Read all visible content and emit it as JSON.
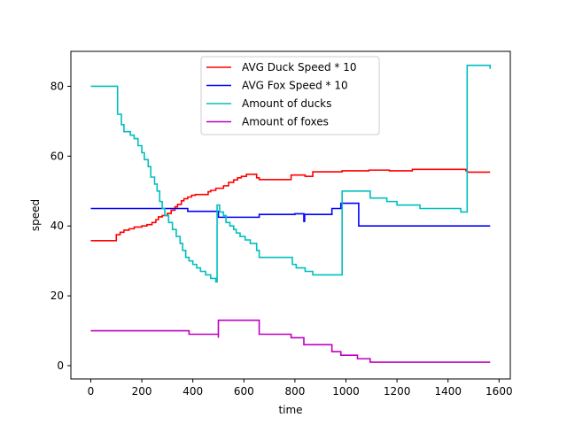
{
  "chart_data": {
    "type": "line",
    "xlabel": "time",
    "ylabel": "speed",
    "xlim": [
      -78,
      1644
    ],
    "ylim": [
      -3.8,
      90
    ],
    "x_ticks": [
      0,
      200,
      400,
      600,
      800,
      1000,
      1200,
      1400,
      1600
    ],
    "y_ticks": [
      0,
      20,
      40,
      60,
      80
    ],
    "grid": false,
    "legend_position": "upper center",
    "series": [
      {
        "name": "AVG Duck Speed * 10",
        "color": "#ff0000",
        "step": true,
        "points": [
          [
            0,
            35.8
          ],
          [
            100,
            35.8
          ],
          [
            100,
            37.5
          ],
          [
            115,
            38.2
          ],
          [
            130,
            38.8
          ],
          [
            150,
            39.2
          ],
          [
            170,
            39.7
          ],
          [
            200,
            40.0
          ],
          [
            220,
            40.4
          ],
          [
            240,
            41.0
          ],
          [
            255,
            41.8
          ],
          [
            265,
            42.6
          ],
          [
            280,
            43.0
          ],
          [
            300,
            43.6
          ],
          [
            315,
            44.5
          ],
          [
            330,
            45.5
          ],
          [
            340,
            46.2
          ],
          [
            355,
            47.2
          ],
          [
            365,
            47.8
          ],
          [
            380,
            48.3
          ],
          [
            395,
            48.8
          ],
          [
            410,
            49.0
          ],
          [
            450,
            49.0
          ],
          [
            460,
            49.8
          ],
          [
            470,
            50.2
          ],
          [
            490,
            50.8
          ],
          [
            520,
            51.5
          ],
          [
            540,
            52.5
          ],
          [
            560,
            53.2
          ],
          [
            575,
            53.8
          ],
          [
            590,
            54.2
          ],
          [
            610,
            54.8
          ],
          [
            640,
            54.8
          ],
          [
            650,
            53.8
          ],
          [
            660,
            53.3
          ],
          [
            780,
            53.3
          ],
          [
            785,
            54.6
          ],
          [
            830,
            54.6
          ],
          [
            840,
            54.2
          ],
          [
            870,
            55.5
          ],
          [
            980,
            55.5
          ],
          [
            985,
            55.8
          ],
          [
            1085,
            55.8
          ],
          [
            1090,
            56.0
          ],
          [
            1165,
            56.0
          ],
          [
            1170,
            55.8
          ],
          [
            1250,
            55.8
          ],
          [
            1260,
            56.2
          ],
          [
            1440,
            56.2
          ],
          [
            1470,
            55.8
          ],
          [
            1475,
            55.4
          ],
          [
            1565,
            55.4
          ]
        ]
      },
      {
        "name": "AVG Fox Speed * 10",
        "color": "#0000ff",
        "step": true,
        "points": [
          [
            0,
            45.0
          ],
          [
            370,
            45.0
          ],
          [
            380,
            44.2
          ],
          [
            495,
            44.2
          ],
          [
            500,
            42.5
          ],
          [
            655,
            42.5
          ],
          [
            660,
            43.3
          ],
          [
            790,
            43.3
          ],
          [
            800,
            43.5
          ],
          [
            835,
            43.5
          ],
          [
            835,
            41.3
          ],
          [
            838,
            43.3
          ],
          [
            935,
            43.3
          ],
          [
            945,
            45.0
          ],
          [
            975,
            45.0
          ],
          [
            980,
            46.5
          ],
          [
            1045,
            46.5
          ],
          [
            1050,
            40.0
          ],
          [
            1565,
            40.0
          ]
        ]
      },
      {
        "name": "Amount of ducks",
        "color": "#00bfbf",
        "step": true,
        "points": [
          [
            0,
            80
          ],
          [
            100,
            80
          ],
          [
            105,
            72
          ],
          [
            120,
            69
          ],
          [
            130,
            67
          ],
          [
            155,
            66
          ],
          [
            170,
            65
          ],
          [
            185,
            63
          ],
          [
            200,
            61
          ],
          [
            210,
            59
          ],
          [
            225,
            57
          ],
          [
            235,
            54
          ],
          [
            250,
            52
          ],
          [
            260,
            50
          ],
          [
            270,
            47
          ],
          [
            280,
            45
          ],
          [
            290,
            43
          ],
          [
            305,
            41
          ],
          [
            320,
            39
          ],
          [
            335,
            37
          ],
          [
            350,
            35
          ],
          [
            360,
            33
          ],
          [
            372,
            31
          ],
          [
            385,
            30
          ],
          [
            400,
            29
          ],
          [
            415,
            28
          ],
          [
            430,
            27
          ],
          [
            450,
            26
          ],
          [
            470,
            25
          ],
          [
            490,
            24
          ],
          [
            495,
            46
          ],
          [
            505,
            44
          ],
          [
            520,
            43
          ],
          [
            530,
            41
          ],
          [
            545,
            40
          ],
          [
            560,
            39
          ],
          [
            570,
            38
          ],
          [
            585,
            37
          ],
          [
            605,
            36
          ],
          [
            625,
            35
          ],
          [
            650,
            33
          ],
          [
            660,
            31
          ],
          [
            780,
            31
          ],
          [
            790,
            29
          ],
          [
            805,
            28
          ],
          [
            840,
            27
          ],
          [
            870,
            26
          ],
          [
            980,
            26
          ],
          [
            985,
            50
          ],
          [
            1090,
            50
          ],
          [
            1095,
            48
          ],
          [
            1150,
            48
          ],
          [
            1160,
            47
          ],
          [
            1200,
            46
          ],
          [
            1280,
            46
          ],
          [
            1290,
            45
          ],
          [
            1440,
            45
          ],
          [
            1450,
            44
          ],
          [
            1470,
            44
          ],
          [
            1475,
            86
          ],
          [
            1560,
            86
          ],
          [
            1565,
            85
          ]
        ]
      },
      {
        "name": "Amount of foxes",
        "color": "#bf00bf",
        "step": true,
        "points": [
          [
            0,
            10
          ],
          [
            380,
            10
          ],
          [
            385,
            9
          ],
          [
            495,
            9
          ],
          [
            500,
            8
          ],
          [
            500,
            13
          ],
          [
            655,
            13
          ],
          [
            660,
            9
          ],
          [
            780,
            9
          ],
          [
            785,
            8
          ],
          [
            830,
            8
          ],
          [
            835,
            6
          ],
          [
            935,
            6
          ],
          [
            945,
            4
          ],
          [
            970,
            4
          ],
          [
            980,
            3
          ],
          [
            1040,
            3
          ],
          [
            1045,
            2
          ],
          [
            1090,
            2
          ],
          [
            1095,
            1
          ],
          [
            1565,
            1
          ]
        ]
      }
    ]
  }
}
